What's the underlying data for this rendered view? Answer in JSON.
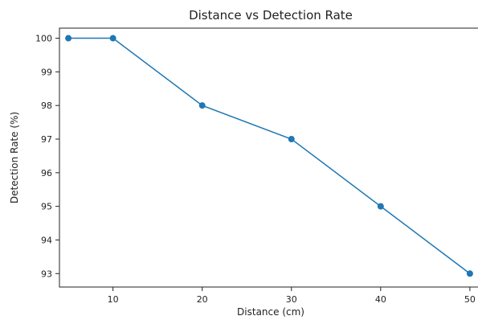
{
  "chart_data": {
    "type": "line",
    "title": "Distance vs Detection Rate",
    "xlabel": "Distance (cm)",
    "ylabel": "Detection Rate (%)",
    "x": [
      5,
      10,
      20,
      30,
      40,
      50
    ],
    "series": [
      {
        "values": [
          100,
          100,
          98,
          97,
          95,
          93
        ],
        "color": "#1f77b4",
        "marker": "circle"
      }
    ],
    "xlim": [
      4,
      51
    ],
    "ylim": [
      92.6,
      100.3
    ],
    "xticks": [
      10,
      20,
      30,
      40,
      50
    ],
    "yticks": [
      93,
      94,
      95,
      96,
      97,
      98,
      99,
      100
    ],
    "grid": false,
    "legend": false
  }
}
